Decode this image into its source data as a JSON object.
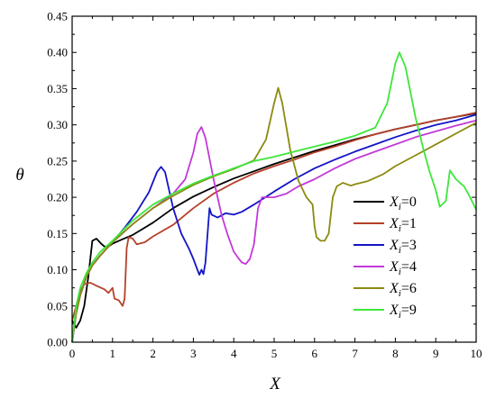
{
  "chart_data": {
    "type": "line",
    "title": "",
    "xlabel": "X",
    "ylabel": "θ",
    "xlim": [
      0,
      10
    ],
    "ylim": [
      0,
      0.45
    ],
    "xticks": [
      "0",
      "1",
      "2",
      "3",
      "4",
      "5",
      "6",
      "7",
      "8",
      "9",
      "10"
    ],
    "yticks": [
      "0.00",
      "0.05",
      "0.10",
      "0.15",
      "0.20",
      "0.25",
      "0.30",
      "0.35",
      "0.40",
      "0.45"
    ],
    "grid": false,
    "legend_position": "bottom-right",
    "series": [
      {
        "name": "Xi=0",
        "legend": {
          "var": "X",
          "sub": "i",
          "val": "=0"
        },
        "color": "#000000",
        "points": [
          [
            0.0,
            0.03
          ],
          [
            0.1,
            0.02
          ],
          [
            0.2,
            0.03
          ],
          [
            0.3,
            0.05
          ],
          [
            0.4,
            0.09
          ],
          [
            0.5,
            0.14
          ],
          [
            0.6,
            0.143
          ],
          [
            0.7,
            0.137
          ],
          [
            0.8,
            0.132
          ],
          [
            0.9,
            0.132
          ],
          [
            1.0,
            0.136
          ],
          [
            1.2,
            0.141
          ],
          [
            1.5,
            0.148
          ],
          [
            2.0,
            0.165
          ],
          [
            2.5,
            0.185
          ],
          [
            3.0,
            0.201
          ],
          [
            3.5,
            0.214
          ],
          [
            4.0,
            0.226
          ],
          [
            4.5,
            0.236
          ],
          [
            5.0,
            0.246
          ],
          [
            5.5,
            0.255
          ],
          [
            6.0,
            0.264
          ],
          [
            6.5,
            0.272
          ],
          [
            7.0,
            0.28
          ],
          [
            7.5,
            0.287
          ],
          [
            8.0,
            0.294
          ],
          [
            8.5,
            0.3
          ],
          [
            9.0,
            0.306
          ],
          [
            9.5,
            0.311
          ],
          [
            10.0,
            0.316
          ]
        ]
      },
      {
        "name": "Xi=1",
        "legend": {
          "var": "X",
          "sub": "i",
          "val": "=1"
        },
        "color": "#b5412a",
        "points": [
          [
            0.0,
            0.03
          ],
          [
            0.1,
            0.05
          ],
          [
            0.2,
            0.07
          ],
          [
            0.3,
            0.08
          ],
          [
            0.45,
            0.082
          ],
          [
            0.6,
            0.078
          ],
          [
            0.8,
            0.073
          ],
          [
            0.9,
            0.068
          ],
          [
            1.0,
            0.075
          ],
          [
            1.05,
            0.06
          ],
          [
            1.15,
            0.058
          ],
          [
            1.25,
            0.05
          ],
          [
            1.3,
            0.06
          ],
          [
            1.35,
            0.13
          ],
          [
            1.4,
            0.145
          ],
          [
            1.5,
            0.143
          ],
          [
            1.6,
            0.135
          ],
          [
            1.8,
            0.138
          ],
          [
            2.0,
            0.146
          ],
          [
            2.5,
            0.162
          ],
          [
            3.0,
            0.185
          ],
          [
            3.5,
            0.205
          ],
          [
            4.0,
            0.22
          ],
          [
            4.5,
            0.233
          ],
          [
            5.0,
            0.243
          ],
          [
            5.5,
            0.252
          ],
          [
            6.0,
            0.262
          ],
          [
            6.5,
            0.27
          ],
          [
            7.0,
            0.279
          ],
          [
            7.5,
            0.287
          ],
          [
            8.0,
            0.294
          ],
          [
            8.5,
            0.3
          ],
          [
            9.0,
            0.306
          ],
          [
            9.5,
            0.311
          ],
          [
            10.0,
            0.317
          ]
        ]
      },
      {
        "name": "Xi=3",
        "legend": {
          "var": "X",
          "sub": "i",
          "val": "=3"
        },
        "color": "#1414c8",
        "points": [
          [
            0.0,
            0.0
          ],
          [
            0.1,
            0.04
          ],
          [
            0.2,
            0.065
          ],
          [
            0.35,
            0.09
          ],
          [
            0.5,
            0.106
          ],
          [
            0.7,
            0.12
          ],
          [
            1.0,
            0.138
          ],
          [
            1.3,
            0.158
          ],
          [
            1.6,
            0.18
          ],
          [
            1.9,
            0.207
          ],
          [
            2.1,
            0.235
          ],
          [
            2.2,
            0.242
          ],
          [
            2.3,
            0.235
          ],
          [
            2.5,
            0.185
          ],
          [
            2.7,
            0.15
          ],
          [
            2.9,
            0.128
          ],
          [
            3.0,
            0.115
          ],
          [
            3.1,
            0.1
          ],
          [
            3.15,
            0.093
          ],
          [
            3.2,
            0.1
          ],
          [
            3.25,
            0.094
          ],
          [
            3.3,
            0.11
          ],
          [
            3.4,
            0.185
          ],
          [
            3.45,
            0.176
          ],
          [
            3.6,
            0.172
          ],
          [
            3.8,
            0.178
          ],
          [
            4.0,
            0.176
          ],
          [
            4.2,
            0.18
          ],
          [
            4.5,
            0.19
          ],
          [
            5.0,
            0.208
          ],
          [
            5.5,
            0.225
          ],
          [
            6.0,
            0.24
          ],
          [
            6.5,
            0.252
          ],
          [
            7.0,
            0.263
          ],
          [
            7.5,
            0.273
          ],
          [
            8.0,
            0.283
          ],
          [
            8.5,
            0.292
          ],
          [
            9.0,
            0.3
          ],
          [
            9.5,
            0.306
          ],
          [
            10.0,
            0.314
          ]
        ]
      },
      {
        "name": "Xi=4",
        "legend": {
          "var": "X",
          "sub": "i",
          "val": "=4"
        },
        "color": "#c23ad8",
        "points": [
          [
            0.0,
            0.0
          ],
          [
            0.1,
            0.04
          ],
          [
            0.2,
            0.065
          ],
          [
            0.35,
            0.09
          ],
          [
            0.5,
            0.106
          ],
          [
            0.7,
            0.12
          ],
          [
            1.0,
            0.138
          ],
          [
            1.5,
            0.163
          ],
          [
            2.0,
            0.185
          ],
          [
            2.5,
            0.205
          ],
          [
            2.8,
            0.225
          ],
          [
            3.0,
            0.262
          ],
          [
            3.1,
            0.288
          ],
          [
            3.2,
            0.297
          ],
          [
            3.3,
            0.282
          ],
          [
            3.5,
            0.225
          ],
          [
            3.7,
            0.175
          ],
          [
            3.85,
            0.148
          ],
          [
            4.0,
            0.125
          ],
          [
            4.1,
            0.117
          ],
          [
            4.2,
            0.11
          ],
          [
            4.3,
            0.108
          ],
          [
            4.4,
            0.115
          ],
          [
            4.5,
            0.135
          ],
          [
            4.6,
            0.185
          ],
          [
            4.7,
            0.2
          ],
          [
            5.0,
            0.2
          ],
          [
            5.3,
            0.205
          ],
          [
            5.6,
            0.215
          ],
          [
            6.0,
            0.225
          ],
          [
            6.5,
            0.24
          ],
          [
            7.0,
            0.253
          ],
          [
            7.5,
            0.263
          ],
          [
            8.0,
            0.273
          ],
          [
            8.5,
            0.283
          ],
          [
            9.0,
            0.291
          ],
          [
            9.5,
            0.299
          ],
          [
            10.0,
            0.306
          ]
        ]
      },
      {
        "name": "Xi=6",
        "legend": {
          "var": "X",
          "sub": "i",
          "val": "=6"
        },
        "color": "#8b8a10",
        "points": [
          [
            0.0,
            0.0
          ],
          [
            0.1,
            0.04
          ],
          [
            0.2,
            0.065
          ],
          [
            0.35,
            0.09
          ],
          [
            0.5,
            0.106
          ],
          [
            0.7,
            0.12
          ],
          [
            1.0,
            0.138
          ],
          [
            1.5,
            0.163
          ],
          [
            2.0,
            0.185
          ],
          [
            2.5,
            0.202
          ],
          [
            3.0,
            0.217
          ],
          [
            3.5,
            0.229
          ],
          [
            4.0,
            0.239
          ],
          [
            4.5,
            0.251
          ],
          [
            4.8,
            0.28
          ],
          [
            5.0,
            0.33
          ],
          [
            5.1,
            0.351
          ],
          [
            5.2,
            0.33
          ],
          [
            5.4,
            0.265
          ],
          [
            5.6,
            0.223
          ],
          [
            5.8,
            0.2
          ],
          [
            5.95,
            0.19
          ],
          [
            6.0,
            0.16
          ],
          [
            6.05,
            0.145
          ],
          [
            6.15,
            0.14
          ],
          [
            6.25,
            0.14
          ],
          [
            6.35,
            0.15
          ],
          [
            6.45,
            0.2
          ],
          [
            6.55,
            0.215
          ],
          [
            6.7,
            0.22
          ],
          [
            6.9,
            0.216
          ],
          [
            7.0,
            0.218
          ],
          [
            7.3,
            0.222
          ],
          [
            7.7,
            0.232
          ],
          [
            8.0,
            0.243
          ],
          [
            8.5,
            0.258
          ],
          [
            9.0,
            0.273
          ],
          [
            9.5,
            0.288
          ],
          [
            10.0,
            0.303
          ]
        ]
      },
      {
        "name": "Xi=9",
        "legend": {
          "var": "X",
          "sub": "i",
          "val": "=9"
        },
        "color": "#3ee63a",
        "points": [
          [
            0.0,
            0.0
          ],
          [
            0.1,
            0.05
          ],
          [
            0.2,
            0.075
          ],
          [
            0.35,
            0.095
          ],
          [
            0.5,
            0.11
          ],
          [
            0.7,
            0.125
          ],
          [
            1.0,
            0.14
          ],
          [
            1.5,
            0.168
          ],
          [
            2.0,
            0.19
          ],
          [
            2.5,
            0.205
          ],
          [
            3.0,
            0.219
          ],
          [
            3.5,
            0.23
          ],
          [
            4.0,
            0.24
          ],
          [
            4.5,
            0.25
          ],
          [
            5.0,
            0.256
          ],
          [
            5.5,
            0.263
          ],
          [
            6.0,
            0.27
          ],
          [
            6.5,
            0.277
          ],
          [
            7.0,
            0.285
          ],
          [
            7.5,
            0.296
          ],
          [
            7.8,
            0.33
          ],
          [
            8.0,
            0.385
          ],
          [
            8.1,
            0.4
          ],
          [
            8.25,
            0.38
          ],
          [
            8.5,
            0.31
          ],
          [
            8.7,
            0.265
          ],
          [
            8.85,
            0.235
          ],
          [
            9.0,
            0.21
          ],
          [
            9.1,
            0.187
          ],
          [
            9.25,
            0.195
          ],
          [
            9.35,
            0.237
          ],
          [
            9.5,
            0.225
          ],
          [
            9.7,
            0.215
          ],
          [
            9.85,
            0.2
          ],
          [
            10.0,
            0.183
          ]
        ]
      }
    ]
  }
}
